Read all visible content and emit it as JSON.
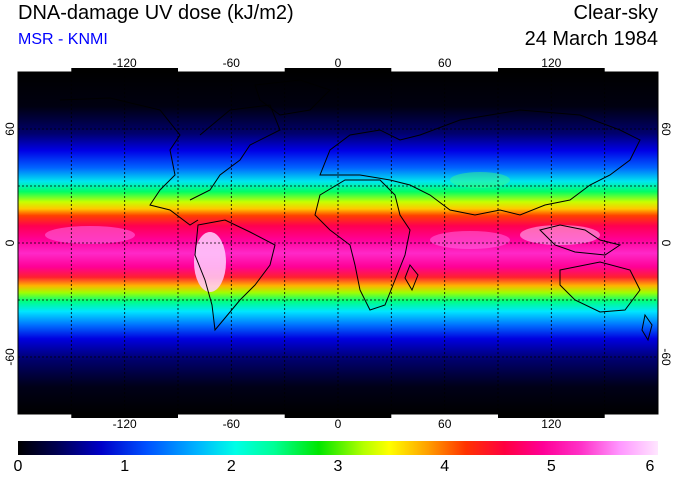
{
  "header": {
    "title": "DNA-damage UV dose (kJ/m2)",
    "source": "MSR - KNMI",
    "condition": "Clear-sky",
    "date": "24 March 1984"
  },
  "map": {
    "lon_range": [
      -180,
      180
    ],
    "lat_range": [
      -90,
      90
    ],
    "lon_ticks": [
      "-120",
      "-60",
      "0",
      "60",
      "120"
    ],
    "lat_ticks": [
      "60",
      "0",
      "-60"
    ],
    "grid_lon_step": 30,
    "grid_lat_step": 30,
    "dose_profile_lat": [
      90,
      70,
      55,
      45,
      38,
      32,
      26,
      20,
      12,
      4,
      -4,
      -12,
      -20,
      -26,
      -32,
      -38,
      -45,
      -55,
      -70,
      -90
    ],
    "dose_profile_value": [
      0.0,
      0.2,
      0.9,
      1.6,
      2.2,
      2.9,
      3.5,
      4.2,
      4.8,
      5.0,
      5.2,
      5.3,
      4.9,
      4.2,
      3.4,
      2.6,
      1.7,
      0.9,
      0.3,
      0.0
    ]
  },
  "legend": {
    "min": 0,
    "max": 6,
    "ticks": [
      "0",
      "1",
      "2",
      "3",
      "4",
      "5",
      "6"
    ],
    "colors": [
      "#000000",
      "#0000c8",
      "#00b4ff",
      "#00ff96",
      "#ffff00",
      "#ff3200",
      "#ff0096",
      "#ffe6ff"
    ]
  }
}
